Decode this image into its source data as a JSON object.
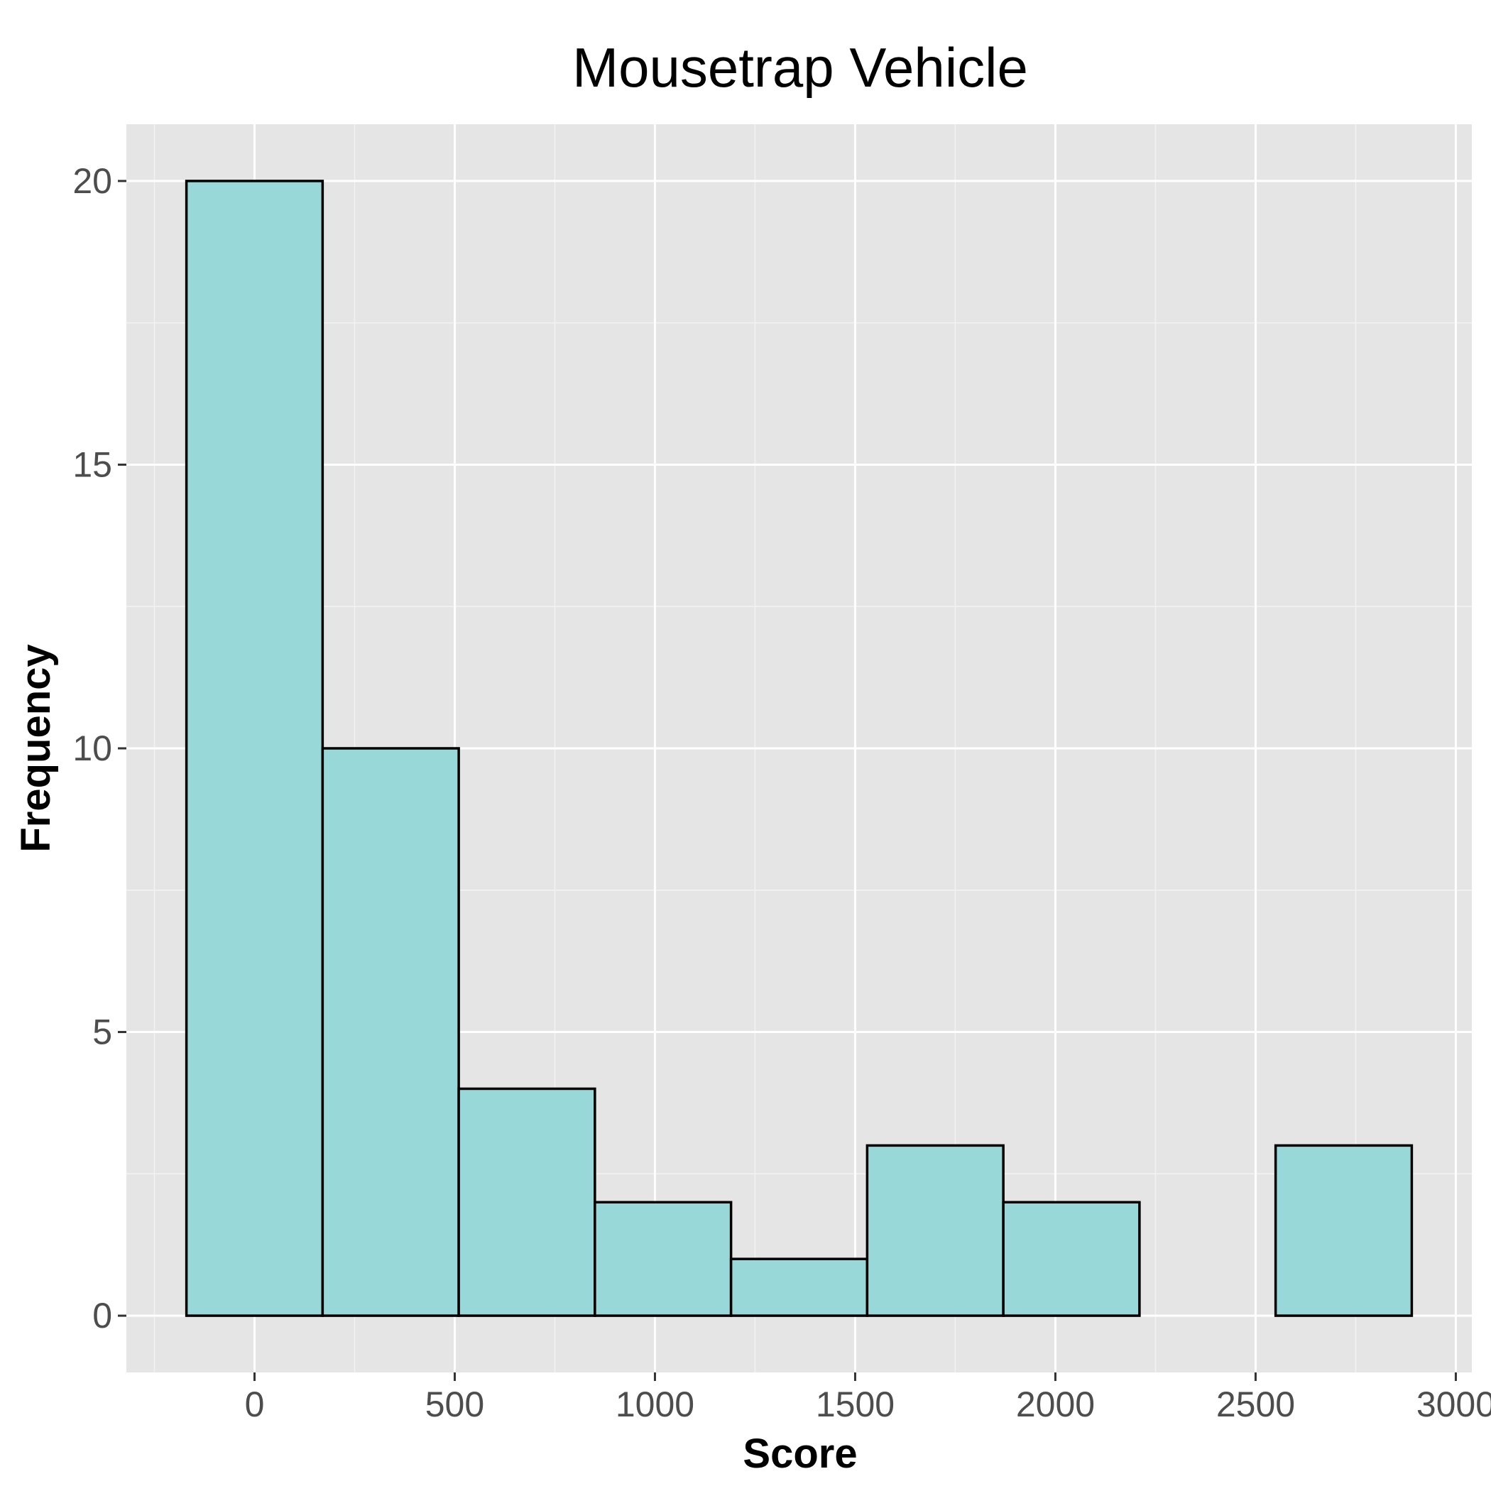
{
  "chart_data": {
    "type": "bar",
    "title": "Mousetrap Vehicle",
    "xlabel": "Score",
    "ylabel": "Frequency",
    "bins": [
      {
        "start": -170,
        "end": 170,
        "count": 20
      },
      {
        "start": 170,
        "end": 510,
        "count": 10
      },
      {
        "start": 510,
        "end": 850,
        "count": 4
      },
      {
        "start": 850,
        "end": 1190,
        "count": 2
      },
      {
        "start": 1190,
        "end": 1530,
        "count": 1
      },
      {
        "start": 1530,
        "end": 1870,
        "count": 3
      },
      {
        "start": 1870,
        "end": 2210,
        "count": 2
      },
      {
        "start": 2210,
        "end": 2550,
        "count": 0
      },
      {
        "start": 2550,
        "end": 2890,
        "count": 3
      }
    ],
    "xlim": [
      -320,
      3040
    ],
    "ylim": [
      -1,
      21
    ],
    "x_ticks": [
      0,
      500,
      1000,
      1500,
      2000,
      2500,
      3000
    ],
    "x_tick_labels": [
      "0",
      "500",
      "1000",
      "1500",
      "2000",
      "2500",
      "3000"
    ],
    "y_ticks": [
      0,
      5,
      10,
      15,
      20
    ],
    "y_tick_labels": [
      "0",
      "5",
      "10",
      "15",
      "20"
    ],
    "grid": true,
    "legend": "none",
    "colors": {
      "bar_fill": "#98d8d8",
      "bar_stroke": "#000000",
      "panel_background": "#e5e5e5",
      "grid_major": "#ffffff",
      "grid_minor": "#f2f2f2"
    }
  }
}
